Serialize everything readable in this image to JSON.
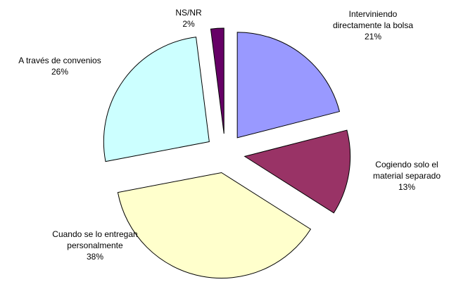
{
  "chart_data": {
    "type": "pie",
    "categories": [
      [
        "Interviniendo",
        "directamente  la bolsa"
      ],
      [
        "Cogiendo solo el",
        "material separado"
      ],
      [
        "Cuando se lo entregan",
        "personalmente"
      ],
      [
        "A través de convenios"
      ],
      [
        "NS/NR"
      ]
    ],
    "values": [
      21,
      13,
      38,
      26,
      2
    ],
    "value_labels": [
      "21%",
      "13%",
      "38%",
      "26%",
      "2%"
    ],
    "colors": [
      "#9999ff",
      "#993366",
      "#ffffcc",
      "#ccffff",
      "#660066"
    ]
  }
}
